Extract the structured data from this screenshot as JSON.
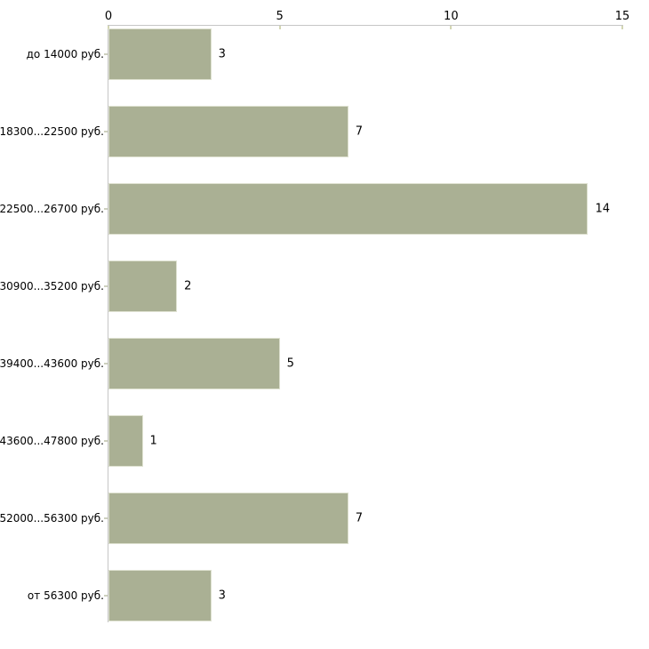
{
  "chart_data": {
    "type": "bar",
    "orientation": "horizontal",
    "title": "",
    "xlabel": "",
    "ylabel": "",
    "categories": [
      "до 14000 руб.",
      "18300...22500 руб.",
      "22500...26700 руб.",
      "30900...35200 руб.",
      "39400...43600 руб.",
      "43600...47800 руб.",
      "52000...56300 руб.",
      "от 56300 руб."
    ],
    "values": [
      3,
      7,
      14,
      2,
      5,
      1,
      7,
      3
    ],
    "xlim": [
      0,
      15
    ],
    "x_ticks": [
      0,
      5,
      10,
      15
    ],
    "x_axis_position": "top",
    "grid": false,
    "legend": false,
    "colors": {
      "bar_fill": "#aab094",
      "bar_border": "#dee1d0",
      "axis_line": "#c6c6c6",
      "x_tick_mark": "#d3d6b4",
      "y_tick_mark": "#cdd0be",
      "text": "#000000",
      "background": "#ffffff"
    }
  }
}
